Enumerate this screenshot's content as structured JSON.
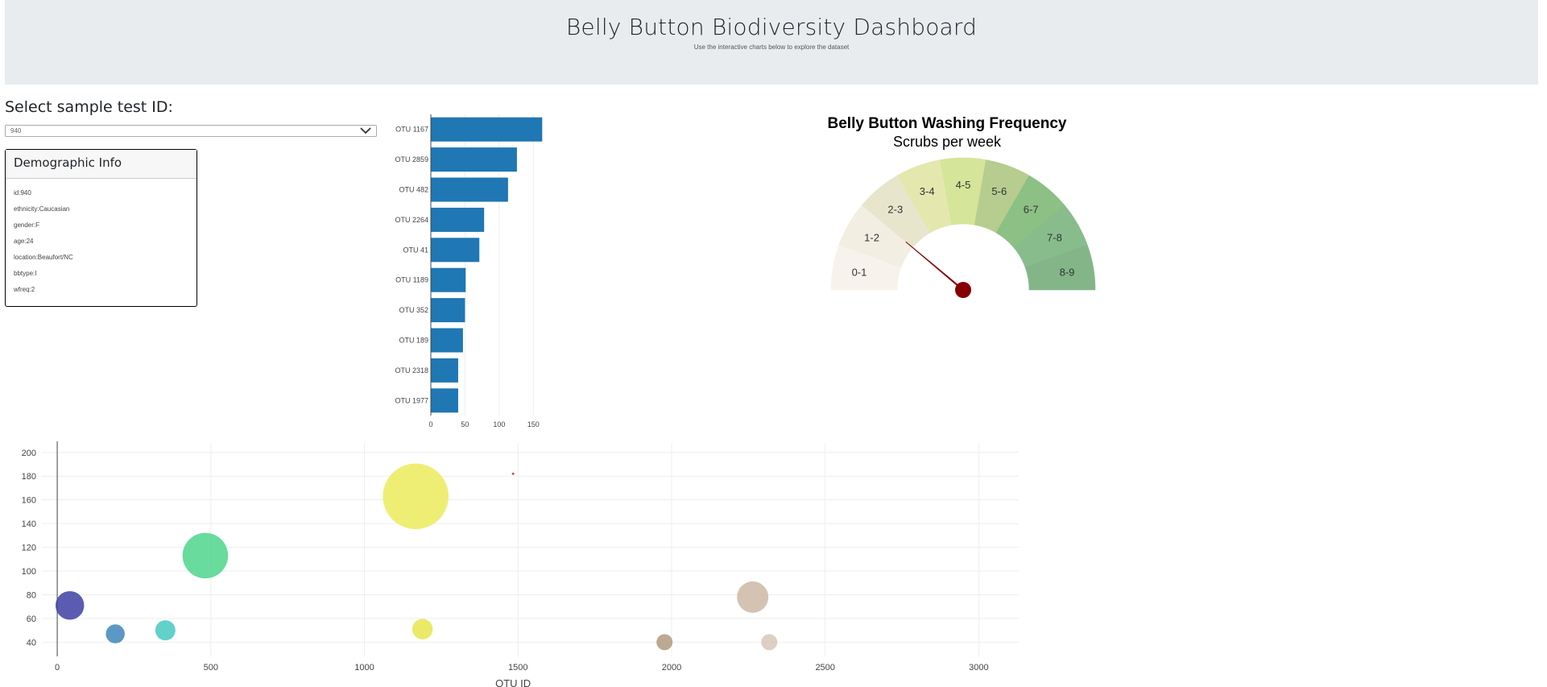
{
  "header": {
    "title": "Belly Button Biodiversity Dashboard",
    "subtitle": "Use the interactive charts below to explore the dataset"
  },
  "selector": {
    "label": "Select sample test ID:",
    "value": "940"
  },
  "demographics": {
    "title": "Demographic Info",
    "lines": [
      "id:940",
      "ethnicity:Caucasian",
      "gender:F",
      "age:24",
      "location:Beaufort/NC",
      "bbtype:I",
      "wfreq:2"
    ]
  },
  "colors": {
    "bar": "#1f77b4",
    "needle": "#850000",
    "header_bg": "#e9ecef"
  },
  "chart_data": [
    {
      "type": "bar",
      "orientation": "horizontal",
      "categories": [
        "OTU 1167",
        "OTU 2859",
        "OTU 482",
        "OTU 2264",
        "OTU 41",
        "OTU 1189",
        "OTU 352",
        "OTU 189",
        "OTU 2318",
        "OTU 1977"
      ],
      "values": [
        163,
        126,
        113,
        78,
        71,
        51,
        50,
        47,
        40,
        40
      ],
      "xticks": [
        "0",
        "50",
        "100",
        "150"
      ],
      "xlim": [
        0,
        165
      ]
    },
    {
      "type": "gauge",
      "title": "Belly Button Washing Frequency",
      "subtitle": "Scrubs per week",
      "segments": [
        "0-1",
        "1-2",
        "2-3",
        "3-4",
        "4-5",
        "5-6",
        "6-7",
        "7-8",
        "8-9"
      ],
      "segment_colors": [
        "#f7f3ec",
        "#f2eee2",
        "#e7e6cd",
        "#e4e8af",
        "#d5e599",
        "#b6cd8f",
        "#8cc084",
        "#89bc8c",
        "#84b589"
      ],
      "range": [
        0,
        9
      ],
      "value": 2
    },
    {
      "type": "scatter",
      "style": "bubble",
      "xlabel": "OTU ID",
      "xticks": [
        "0",
        "500",
        "1000",
        "1500",
        "2000",
        "2500",
        "3000"
      ],
      "yticks": [
        "40",
        "60",
        "80",
        "100",
        "120",
        "140",
        "160",
        "180",
        "200"
      ],
      "xlim": [
        -50,
        3130
      ],
      "ylim": [
        28,
        208
      ],
      "points": [
        {
          "x": 1167,
          "y": 163,
          "size": 163,
          "color": "#eceb5c"
        },
        {
          "x": 482,
          "y": 113,
          "size": 113,
          "color": "#4ed58c"
        },
        {
          "x": 41,
          "y": 71,
          "size": 71,
          "color": "#3f3ea5"
        },
        {
          "x": 189,
          "y": 47,
          "size": 47,
          "color": "#3f86b8"
        },
        {
          "x": 352,
          "y": 50,
          "size": 50,
          "color": "#47c9c0"
        },
        {
          "x": 1189,
          "y": 51,
          "size": 51,
          "color": "#e6e54e"
        },
        {
          "x": 1977,
          "y": 40,
          "size": 40,
          "color": "#b09a7f"
        },
        {
          "x": 2264,
          "y": 78,
          "size": 78,
          "color": "#cdb8a5"
        },
        {
          "x": 2318,
          "y": 40,
          "size": 40,
          "color": "#d8c7b8"
        },
        {
          "x": 1484,
          "y": 182,
          "size": 2,
          "color": "#d62728"
        }
      ]
    }
  ]
}
